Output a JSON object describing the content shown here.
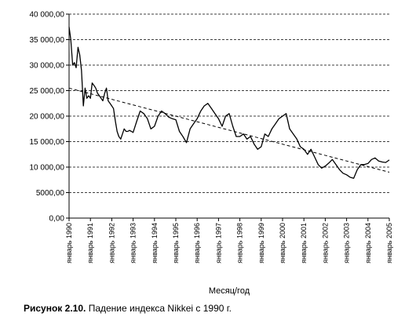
{
  "caption": {
    "label": "Рисунок 2.10.",
    "text": "Падение индекса Nikkei с 1990 г."
  },
  "chart_data": {
    "type": "line",
    "title": "",
    "xlabel": "Месяц/год",
    "ylabel": "",
    "ylim": [
      0,
      40000
    ],
    "grid": "dashed horizontal",
    "y_ticks": [
      {
        "value": 0,
        "label": "0,00"
      },
      {
        "value": 5000,
        "label": "5000,00"
      },
      {
        "value": 10000,
        "label": "10 000,00"
      },
      {
        "value": 15000,
        "label": "15 000,00"
      },
      {
        "value": 20000,
        "label": "20 000,00"
      },
      {
        "value": 25000,
        "label": "25 000,00"
      },
      {
        "value": 30000,
        "label": "30 000,00"
      },
      {
        "value": 35000,
        "label": "35 000,00"
      },
      {
        "value": 40000,
        "label": "40 000,00"
      }
    ],
    "x_ticks": [
      {
        "value": 1990,
        "label": "январь 1990"
      },
      {
        "value": 1991,
        "label": "январь 1991"
      },
      {
        "value": 1992,
        "label": "январь 1992"
      },
      {
        "value": 1993,
        "label": "январь 1993"
      },
      {
        "value": 1994,
        "label": "январь 1994"
      },
      {
        "value": 1995,
        "label": "январь 1995"
      },
      {
        "value": 1996,
        "label": "январь 1996"
      },
      {
        "value": 1997,
        "label": "январь 1997"
      },
      {
        "value": 1998,
        "label": "январь 1998"
      },
      {
        "value": 1999,
        "label": "январь 1999"
      },
      {
        "value": 2000,
        "label": "январь 2000"
      },
      {
        "value": 2001,
        "label": "январь 2001"
      },
      {
        "value": 2002,
        "label": "январь 2002"
      },
      {
        "value": 2003,
        "label": "январь 2003"
      },
      {
        "value": 2004,
        "label": "январь 2004"
      },
      {
        "value": 2005,
        "label": "январь 2005"
      }
    ],
    "xlim": [
      1990,
      2005
    ],
    "colors": {
      "line": "#000000",
      "grid": "#000000",
      "trend": "#000000"
    },
    "series": [
      {
        "style": "solid",
        "x": [
          1990.0,
          1990.08,
          1990.17,
          1990.25,
          1990.33,
          1990.42,
          1990.5,
          1990.58,
          1990.67,
          1990.75,
          1990.83,
          1990.92,
          1991.0,
          1991.08,
          1991.17,
          1991.25,
          1991.33,
          1991.42,
          1991.5,
          1991.58,
          1991.67,
          1991.75,
          1991.83,
          1991.92,
          1992.0,
          1992.08,
          1992.17,
          1992.25,
          1992.33,
          1992.42,
          1992.5,
          1992.58,
          1992.67,
          1992.75,
          1992.83,
          1992.92,
          1993.0,
          1993.17,
          1993.33,
          1993.5,
          1993.67,
          1993.83,
          1994.0,
          1994.17,
          1994.33,
          1994.5,
          1994.67,
          1994.83,
          1995.0,
          1995.17,
          1995.33,
          1995.5,
          1995.67,
          1995.83,
          1996.0,
          1996.17,
          1996.33,
          1996.5,
          1996.67,
          1996.83,
          1997.0,
          1997.17,
          1997.33,
          1997.5,
          1997.67,
          1997.83,
          1998.0,
          1998.17,
          1998.33,
          1998.5,
          1998.67,
          1998.83,
          1999.0,
          1999.17,
          1999.33,
          1999.5,
          1999.67,
          1999.83,
          2000.0,
          2000.17,
          2000.33,
          2000.5,
          2000.67,
          2000.83,
          2001.0,
          2001.17,
          2001.33,
          2001.5,
          2001.67,
          2001.83,
          2002.0,
          2002.17,
          2002.33,
          2002.5,
          2002.67,
          2002.83,
          2003.0,
          2003.17,
          2003.33,
          2003.5,
          2003.67,
          2003.83,
          2004.0,
          2004.17,
          2004.33,
          2004.5,
          2004.67,
          2004.83,
          2005.0
        ],
        "values": [
          37500,
          35000,
          30000,
          30500,
          29500,
          33500,
          32000,
          29000,
          22000,
          25500,
          23500,
          24000,
          23500,
          26500,
          26000,
          25500,
          24500,
          24000,
          23500,
          23000,
          24500,
          25500,
          23000,
          22500,
          22000,
          21500,
          19000,
          17000,
          16000,
          15500,
          16500,
          17500,
          17000,
          17000,
          17200,
          17000,
          16800,
          19000,
          21000,
          20500,
          19500,
          17500,
          18000,
          20000,
          21000,
          20500,
          19800,
          19500,
          19300,
          17000,
          16000,
          14800,
          17500,
          18500,
          19500,
          21000,
          22000,
          22500,
          21500,
          20500,
          19500,
          18000,
          20000,
          20500,
          18000,
          16000,
          16000,
          16500,
          15500,
          16000,
          14500,
          13500,
          14000,
          16500,
          16000,
          17500,
          18500,
          19500,
          20000,
          20500,
          17500,
          16500,
          15500,
          14000,
          13500,
          12500,
          13500,
          12000,
          10500,
          9800,
          10200,
          10800,
          11500,
          10500,
          9500,
          8800,
          8500,
          8000,
          7800,
          9500,
          10500,
          10500,
          10700,
          11500,
          11800,
          11200,
          11000,
          10900,
          11400
        ]
      },
      {
        "style": "dashed",
        "x": [
          1990.0,
          2005.0
        ],
        "values": [
          25500,
          9000
        ]
      }
    ]
  }
}
